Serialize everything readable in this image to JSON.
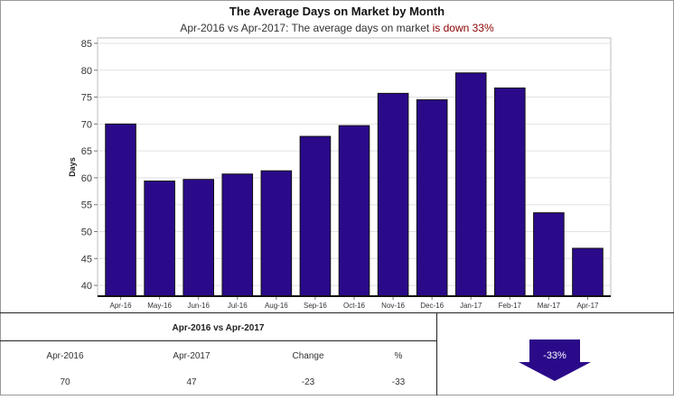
{
  "header": {
    "title": "The Average Days on Market by Month",
    "subtitle_prefix": "Apr-2016 vs Apr-2017: The average days on market ",
    "subtitle_highlight": "is down 33%"
  },
  "chart_data": {
    "type": "bar",
    "categories": [
      "Apr-16",
      "May-16",
      "Jun-16",
      "Jul-16",
      "Aug-16",
      "Sep-16",
      "Oct-16",
      "Nov-16",
      "Dec-16",
      "Jan-17",
      "Feb-17",
      "Mar-17",
      "Apr-17"
    ],
    "values": [
      70,
      59.4,
      59.7,
      60.7,
      61.3,
      67.7,
      69.7,
      75.7,
      74.5,
      79.5,
      76.7,
      53.5,
      46.9
    ],
    "title": "The Average Days on Market by Month",
    "xlabel": "",
    "ylabel": "Days",
    "ylim": [
      38,
      86
    ],
    "yticks": [
      40,
      45,
      50,
      55,
      60,
      65,
      70,
      75,
      80,
      85
    ],
    "grid": true,
    "legend": "none",
    "bar_color": "#2b0a8a"
  },
  "summary": {
    "title": "Apr-2016 vs Apr-2017",
    "headers": [
      "Apr-2016",
      "Apr-2017",
      "Change",
      "%"
    ],
    "values": [
      "70",
      "47",
      "-23",
      "-33"
    ]
  },
  "indicator": {
    "label": "-33%",
    "direction": "down",
    "color": "#2b0a8a"
  }
}
